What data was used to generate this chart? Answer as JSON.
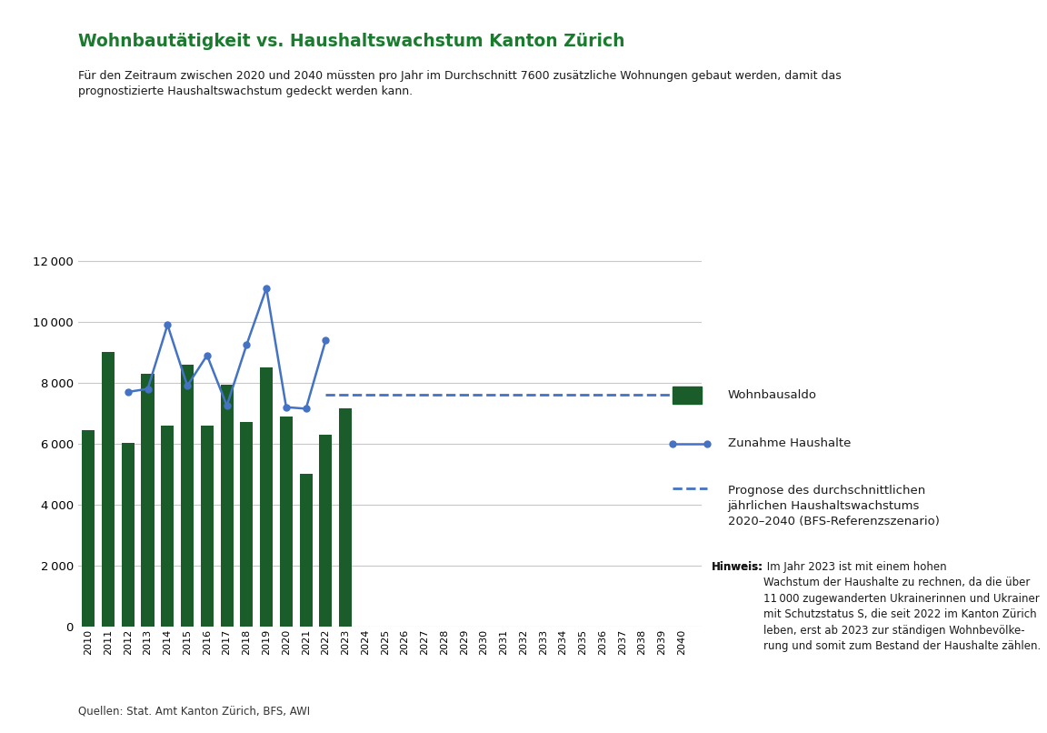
{
  "title": "Wohnbautätigkeit vs. Haushaltswachstum Kanton Zürich",
  "subtitle": "Für den Zeitraum zwischen 2020 und 2040 müssten pro Jahr im Durchschnitt 7600 zusätzliche Wohnungen gebaut werden, damit das\nprognostizierte Haushaltswachstum gedeckt werden kann.",
  "title_color": "#1a7a2e",
  "bar_years": [
    2010,
    2011,
    2012,
    2013,
    2014,
    2015,
    2016,
    2017,
    2018,
    2019,
    2020,
    2021,
    2022,
    2023
  ],
  "bar_values": [
    6450,
    9000,
    6020,
    8300,
    6600,
    8600,
    6600,
    7950,
    6700,
    8500,
    6900,
    5000,
    6300,
    7150
  ],
  "bar_color": "#1a5c2a",
  "line_years": [
    2012,
    2013,
    2014,
    2015,
    2016,
    2017,
    2018,
    2019,
    2020,
    2021,
    2022
  ],
  "line_values": [
    7700,
    7800,
    9900,
    7900,
    8900,
    7250,
    9250,
    11100,
    7200,
    7150,
    9400
  ],
  "line_color": "#4472c4",
  "dashed_line_value": 7600,
  "dashed_start_year": 2022,
  "dashed_end_year": 2040,
  "dashed_color": "#4472c4",
  "ylim": [
    0,
    12500
  ],
  "yticks": [
    0,
    2000,
    4000,
    6000,
    8000,
    10000,
    12000
  ],
  "xlim_start": 2009.5,
  "xlim_end": 2041,
  "source_text": "Quellen: Stat. Amt Kanton Zürich, BFS, AWI",
  "legend_wohnbau": "Wohnbausaldo",
  "legend_haushalte": "Zunahme Haushalte",
  "legend_prognose_line1": "Prognose des durchschnittlichen",
  "legend_prognose_line2": "jährlichen Haushaltswachstums",
  "legend_prognose_line3": "2020–2040 (BFS-Referenzszenario)",
  "hinweis_bold": "Hinweis:",
  "hinweis_rest": " Im Jahr 2023 ist mit einem hohen\nWachstum der Haushalte zu rechnen, da die über\n11 000 zugewanderten Ukrainerinnen und Ukrainer\nmit Schutzstatus S, die seit 2022 im Kanton Zürich\nleben, erst ab 2023 zur ständigen Wohnbevölke-\nrung und somit zum Bestand der Haushalte zählen.",
  "background_color": "#ffffff",
  "grid_color": "#c8c8c8"
}
